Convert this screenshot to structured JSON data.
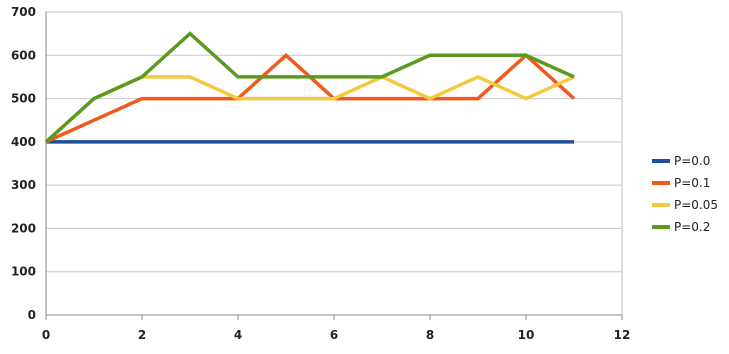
{
  "chart_data": {
    "type": "line",
    "title": "",
    "xlabel": "",
    "ylabel": "",
    "xlim": [
      0,
      12
    ],
    "ylim": [
      0,
      700
    ],
    "xticks": [
      "0",
      "2",
      "4",
      "6",
      "8",
      "10",
      "12"
    ],
    "yticks": [
      "0",
      "100",
      "200",
      "300",
      "400",
      "500",
      "600",
      "700"
    ],
    "grid": "horizontal",
    "legend_position": "right",
    "series": [
      {
        "name": "P=0.0",
        "color": "#1f4e9a",
        "x": [
          0,
          11
        ],
        "values": [
          400,
          400
        ]
      },
      {
        "name": "P=0.1",
        "color": "#f05a1a",
        "x": [
          0,
          1,
          2,
          3,
          4,
          5,
          6,
          7,
          8,
          9,
          10,
          11
        ],
        "values": [
          400,
          450,
          500,
          500,
          500,
          600,
          500,
          500,
          500,
          500,
          600,
          500
        ]
      },
      {
        "name": "P=0.05",
        "color": "#f5c842",
        "x": [
          0,
          1,
          2,
          3,
          4,
          5,
          6,
          7,
          8,
          9,
          10,
          11
        ],
        "values": [
          400,
          500,
          550,
          550,
          500,
          500,
          500,
          550,
          500,
          550,
          500,
          550
        ]
      },
      {
        "name": "P=0.2",
        "color": "#5a9a1f",
        "x": [
          0,
          1,
          2,
          3,
          4,
          5,
          6,
          7,
          8,
          9,
          10,
          11
        ],
        "values": [
          400,
          500,
          550,
          650,
          550,
          550,
          550,
          550,
          600,
          600,
          600,
          550
        ]
      }
    ]
  }
}
